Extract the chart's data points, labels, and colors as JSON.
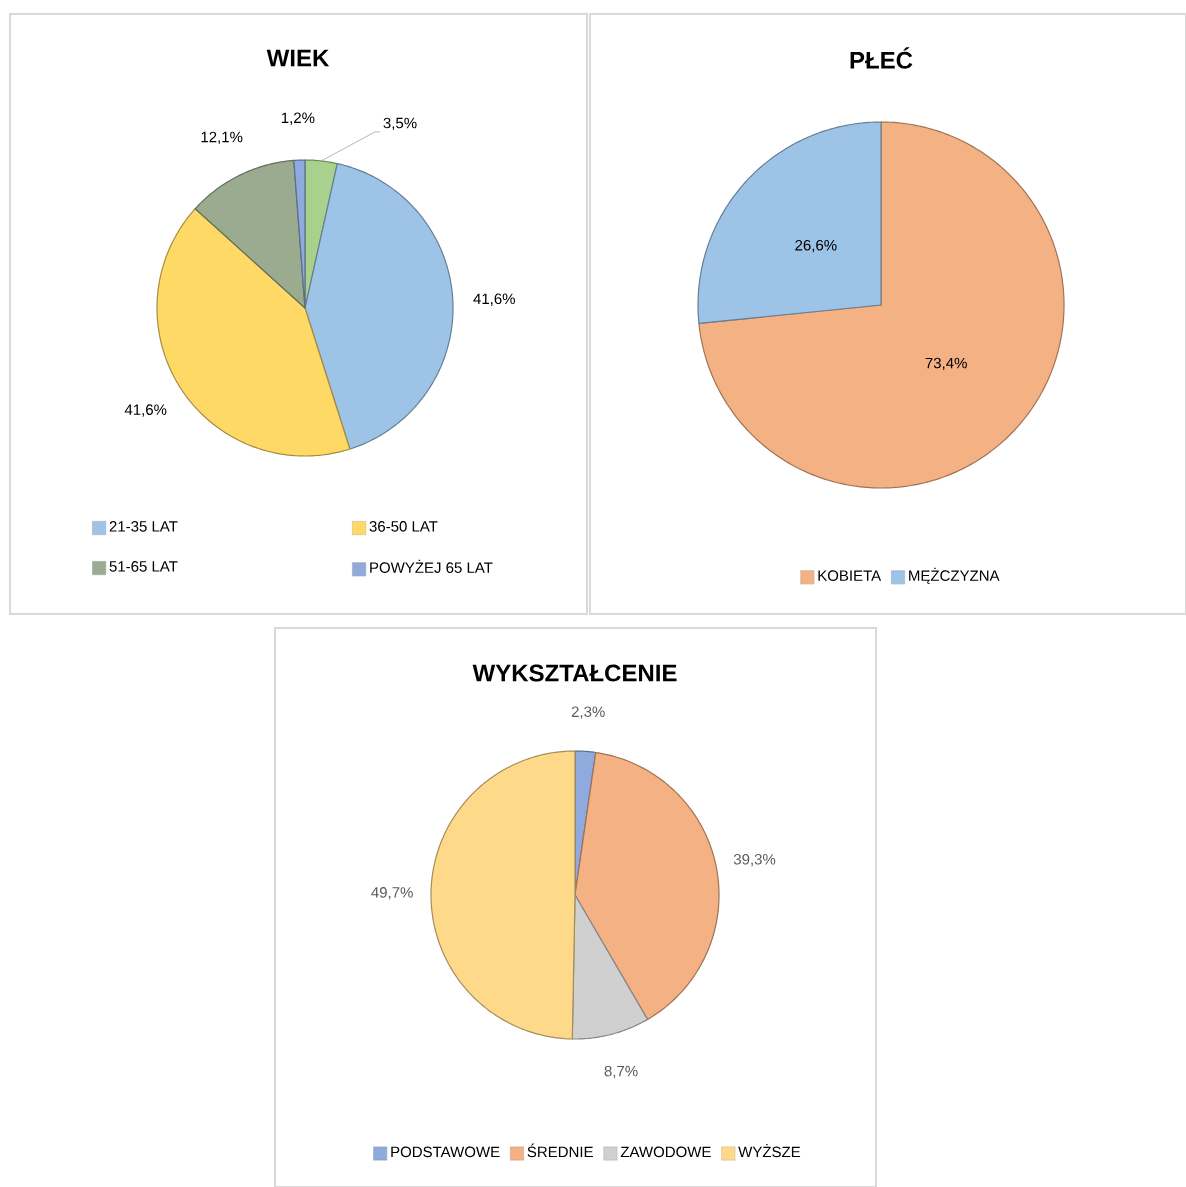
{
  "chart_data": [
    {
      "type": "pie",
      "title": "WIEK",
      "categories": [
        null,
        "21-35 LAT",
        "36-50 LAT",
        "51-65 LAT",
        "POWYŻEJ 65 LAT"
      ],
      "values": [
        3.5,
        41.6,
        41.6,
        12.1,
        1.2
      ],
      "value_labels": [
        "3,5%",
        "41,6%",
        "41,6%",
        "12,1%",
        "1,2%"
      ],
      "colors": [
        "#a9d18e",
        "#9dc3e6",
        "#ffd966",
        "#9aab8f",
        "#8faadc"
      ],
      "legend": "bottom"
    },
    {
      "type": "pie",
      "title": "PŁEĆ",
      "categories": [
        "KOBIETA",
        "MĘŻCZYZNA"
      ],
      "values": [
        73.4,
        26.6
      ],
      "value_labels": [
        "73,4%",
        "26,6%"
      ],
      "colors": [
        "#f4b183",
        "#9dc3e6"
      ],
      "legend": "bottom"
    },
    {
      "type": "pie",
      "title": "WYKSZTAŁCENIE",
      "categories": [
        "PODSTAWOWE",
        "ŚREDNIE",
        "ZAWODOWE",
        "WYŻSZE"
      ],
      "values": [
        2.3,
        39.3,
        8.7,
        49.7
      ],
      "value_labels": [
        "2,3%",
        "39,3%",
        "8,7%",
        "49,7%"
      ],
      "colors": [
        "#8faadc",
        "#f4b183",
        "#d0d0d0",
        "#ffd98a"
      ],
      "legend": "bottom"
    }
  ]
}
